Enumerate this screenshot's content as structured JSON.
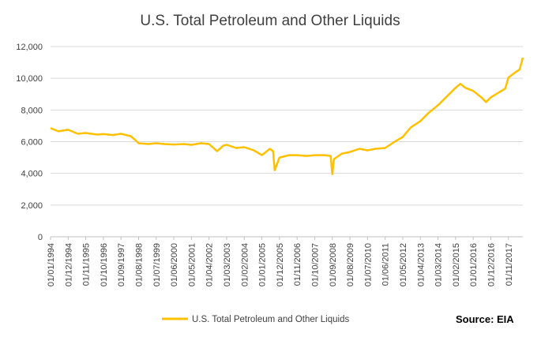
{
  "chart_data": {
    "type": "line",
    "title": "U.S. Total Petroleum and Other Liquids",
    "xlabel": "",
    "ylabel": "",
    "ylim": [
      0,
      12000
    ],
    "yticks": [
      "0",
      "2,000",
      "4,000",
      "6,000",
      "8,000",
      "10,000",
      "12,000"
    ],
    "xticks": [
      "01/01/1994",
      "01/12/1994",
      "01/11/1995",
      "01/10/1996",
      "01/09/1997",
      "01/08/1998",
      "01/07/1999",
      "01/06/2000",
      "01/05/2001",
      "01/04/2002",
      "01/03/2003",
      "01/02/2004",
      "01/01/2005",
      "01/12/2005",
      "01/11/2006",
      "01/10/2007",
      "01/09/2008",
      "01/08/2009",
      "01/07/2010",
      "01/06/2011",
      "01/05/2012",
      "01/04/2013",
      "01/03/2014",
      "01/02/2015",
      "01/01/2016",
      "01/12/2016",
      "01/11/2017"
    ],
    "grid": true,
    "legend_position": "bottom",
    "line_color": "#FFC000",
    "series": [
      {
        "name": "U.S. Total Petroleum and Other Liquids",
        "points": [
          [
            "01/01/1994",
            6850
          ],
          [
            "01/06/1994",
            6650
          ],
          [
            "01/12/1994",
            6750
          ],
          [
            "01/06/1995",
            6500
          ],
          [
            "01/11/1995",
            6550
          ],
          [
            "01/06/1996",
            6450
          ],
          [
            "01/10/1996",
            6480
          ],
          [
            "01/04/1997",
            6420
          ],
          [
            "01/09/1997",
            6500
          ],
          [
            "01/03/1998",
            6350
          ],
          [
            "01/06/1998",
            6100
          ],
          [
            "01/08/1998",
            5900
          ],
          [
            "01/02/1999",
            5850
          ],
          [
            "01/07/1999",
            5900
          ],
          [
            "01/12/1999",
            5850
          ],
          [
            "01/06/2000",
            5820
          ],
          [
            "01/12/2000",
            5850
          ],
          [
            "01/05/2001",
            5800
          ],
          [
            "01/11/2001",
            5900
          ],
          [
            "01/04/2002",
            5850
          ],
          [
            "01/09/2002",
            5400
          ],
          [
            "01/01/2003",
            5750
          ],
          [
            "01/03/2003",
            5800
          ],
          [
            "01/09/2003",
            5600
          ],
          [
            "01/02/2004",
            5650
          ],
          [
            "01/08/2004",
            5450
          ],
          [
            "01/01/2005",
            5150
          ],
          [
            "01/06/2005",
            5550
          ],
          [
            "01/08/2005",
            5400
          ],
          [
            "01/09/2005",
            4200
          ],
          [
            "01/12/2005",
            5000
          ],
          [
            "01/06/2006",
            5150
          ],
          [
            "01/11/2006",
            5150
          ],
          [
            "01/05/2007",
            5100
          ],
          [
            "01/10/2007",
            5150
          ],
          [
            "01/04/2008",
            5150
          ],
          [
            "01/08/2008",
            5100
          ],
          [
            "01/09/2008",
            3950
          ],
          [
            "01/10/2008",
            4900
          ],
          [
            "01/03/2009",
            5250
          ],
          [
            "01/08/2009",
            5350
          ],
          [
            "01/02/2010",
            5550
          ],
          [
            "01/07/2010",
            5450
          ],
          [
            "01/12/2010",
            5550
          ],
          [
            "01/06/2011",
            5600
          ],
          [
            "01/12/2011",
            6000
          ],
          [
            "01/05/2012",
            6300
          ],
          [
            "01/10/2012",
            6900
          ],
          [
            "01/04/2013",
            7300
          ],
          [
            "01/09/2013",
            7800
          ],
          [
            "01/03/2014",
            8300
          ],
          [
            "01/08/2014",
            8800
          ],
          [
            "01/02/2015",
            9400
          ],
          [
            "01/05/2015",
            9650
          ],
          [
            "01/08/2015",
            9400
          ],
          [
            "01/01/2016",
            9200
          ],
          [
            "01/06/2016",
            8800
          ],
          [
            "01/09/2016",
            8500
          ],
          [
            "01/12/2016",
            8800
          ],
          [
            "01/05/2017",
            9100
          ],
          [
            "01/09/2017",
            9350
          ],
          [
            "01/11/2017",
            10050
          ],
          [
            "01/03/2018",
            10350
          ],
          [
            "01/06/2018",
            10550
          ],
          [
            "01/08/2018",
            11300
          ]
        ]
      }
    ],
    "source": "Source: EIA"
  }
}
